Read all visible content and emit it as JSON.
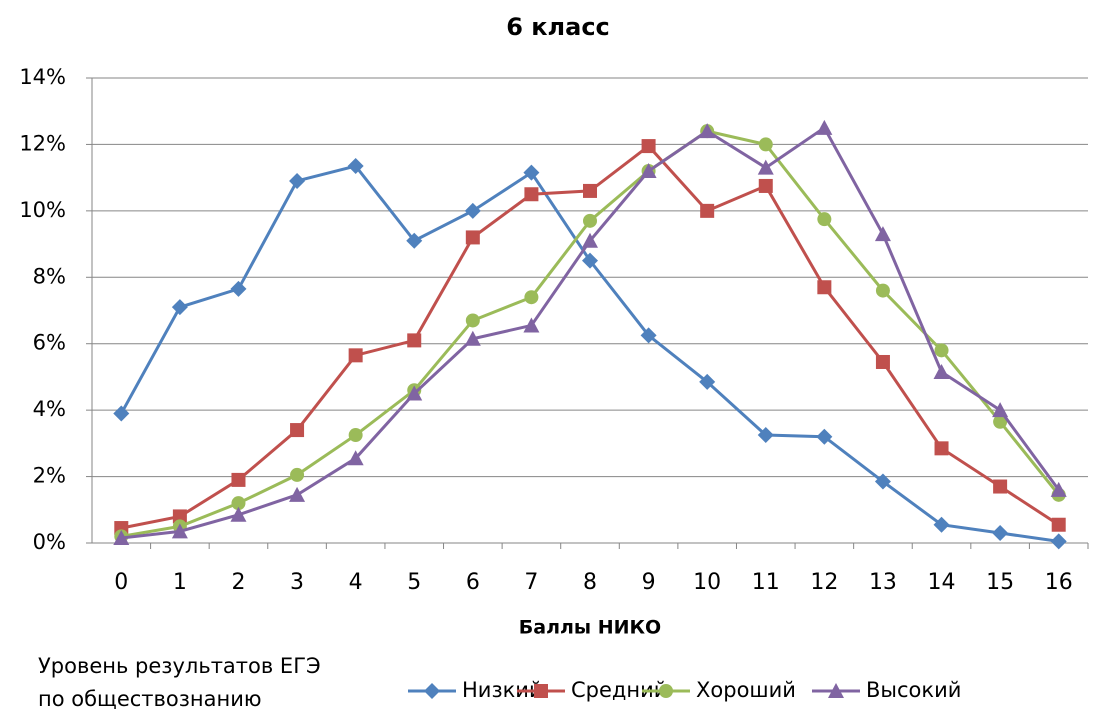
{
  "chart_data": {
    "type": "line",
    "title": "6 класс",
    "x_label": "Баллы НИКО",
    "legend_title": [
      "Уровень результатов ЕГЭ",
      "по обществознанию"
    ],
    "categories": [
      "0",
      "1",
      "2",
      "3",
      "4",
      "5",
      "6",
      "7",
      "8",
      "9",
      "10",
      "11",
      "12",
      "13",
      "14",
      "15",
      "16"
    ],
    "ylim": [
      0,
      14
    ],
    "yticks": [
      {
        "value": 0,
        "label": "0%"
      },
      {
        "value": 2,
        "label": "2%"
      },
      {
        "value": 4,
        "label": "4%"
      },
      {
        "value": 6,
        "label": "6%"
      },
      {
        "value": 8,
        "label": "8%"
      },
      {
        "value": 10,
        "label": "10%"
      },
      {
        "value": 12,
        "label": "12%"
      },
      {
        "value": 14,
        "label": "14%"
      }
    ],
    "grid": true,
    "legend": "bottom",
    "series": [
      {
        "name": "Низкий",
        "color": "#4f81bd",
        "marker": "diamond",
        "values": [
          3.9,
          7.1,
          7.65,
          10.9,
          11.35,
          9.1,
          10.0,
          11.15,
          8.5,
          6.25,
          4.85,
          3.25,
          3.2,
          1.85,
          0.55,
          0.3,
          0.05
        ]
      },
      {
        "name": "Средний",
        "color": "#c0504d",
        "marker": "square",
        "values": [
          0.45,
          0.8,
          1.9,
          3.4,
          5.65,
          6.1,
          9.2,
          10.5,
          10.6,
          11.95,
          10.0,
          10.75,
          7.7,
          5.45,
          2.85,
          1.7,
          0.55
        ]
      },
      {
        "name": "Хороший",
        "color": "#9bbb59",
        "marker": "circle",
        "values": [
          0.2,
          0.5,
          1.2,
          2.05,
          3.25,
          4.6,
          6.7,
          7.4,
          9.7,
          11.2,
          12.4,
          12.0,
          9.75,
          7.6,
          5.8,
          3.65,
          1.45
        ]
      },
      {
        "name": "Высокий",
        "color": "#8064a2",
        "marker": "triangle",
        "values": [
          0.15,
          0.35,
          0.85,
          1.45,
          2.55,
          4.5,
          6.15,
          6.55,
          9.1,
          11.2,
          12.4,
          11.3,
          12.5,
          9.3,
          5.15,
          4.0,
          1.6
        ]
      }
    ]
  }
}
